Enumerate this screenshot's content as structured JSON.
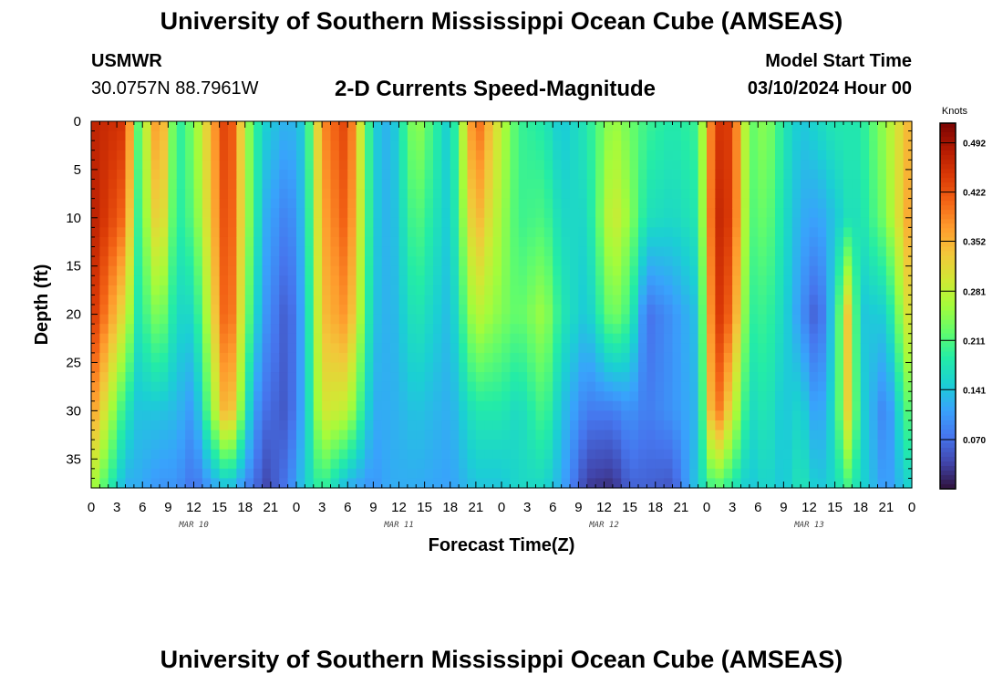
{
  "header": {
    "title": "University of Southern Mississippi Ocean Cube (AMSEAS)",
    "station": "USMWR",
    "coords": "30.0757N  88.7961W",
    "subtitle": "2-D Currents Speed-Magnitude",
    "model_start_label": "Model Start Time",
    "model_start_value": "03/10/2024 Hour 00"
  },
  "footer": {
    "title": "University of Southern Mississippi Ocean Cube (AMSEAS)"
  },
  "colors": {
    "axis": "#000000",
    "colormap": [
      "#30123b",
      "#4145ab",
      "#4675ed",
      "#39a2fc",
      "#1bcfd4",
      "#24eca6",
      "#61fc6c",
      "#a4fc3b",
      "#d1e834",
      "#f3c63a",
      "#fe9b2d",
      "#f36315",
      "#d93806",
      "#b11901",
      "#7a0403"
    ]
  },
  "chart_data": {
    "type": "heatmap",
    "title": "2-D Currents Speed-Magnitude",
    "xlabel": "Forecast Time(Z)",
    "ylabel": "Depth (ft)",
    "x_range_hours": [
      0,
      96
    ],
    "x_tick_step_hours": 3,
    "x_tick_labels": [
      "0",
      "3",
      "6",
      "9",
      "12",
      "15",
      "18",
      "21",
      "0",
      "3",
      "6",
      "9",
      "12",
      "15",
      "18",
      "21",
      "0",
      "3",
      "6",
      "9",
      "12",
      "15",
      "18",
      "21",
      "0",
      "3",
      "6",
      "9",
      "12",
      "15",
      "18",
      "21",
      "0"
    ],
    "day_labels": [
      {
        "label": "MAR 10",
        "hour": 12
      },
      {
        "label": "MAR 11",
        "hour": 36
      },
      {
        "label": "MAR 12",
        "hour": 60
      },
      {
        "label": "MAR 13",
        "hour": 84
      }
    ],
    "ylim": [
      0,
      38
    ],
    "y_ticks": [
      0,
      5,
      10,
      15,
      20,
      25,
      30,
      35
    ],
    "y_tick_labels": [
      "0",
      "5",
      "10",
      "15",
      "20",
      "25",
      "30",
      "35"
    ],
    "colorbar": {
      "label": "Knots",
      "range": [
        0.0,
        0.52
      ],
      "ticks": [
        0.492,
        0.422,
        0.352,
        0.281,
        0.211,
        0.141,
        0.07
      ],
      "tick_labels": [
        "0.492",
        "0.422",
        "0.352",
        "0.281",
        "0.211",
        "0.141",
        "0.070"
      ]
    },
    "profile_hours": [
      0,
      4,
      5.5,
      8,
      10,
      12,
      16,
      19,
      20.5,
      23,
      25,
      27,
      30,
      33,
      35,
      38,
      42,
      45,
      48,
      50,
      53,
      55,
      58,
      61,
      63,
      65,
      68,
      71,
      73,
      75,
      77,
      79,
      81,
      83,
      85,
      87,
      88.5,
      90,
      93,
      96
    ],
    "profile_depths_ft": [
      0,
      10,
      20,
      30,
      38
    ],
    "speed_profiles_knots": [
      [
        0.47,
        0.48,
        0.46,
        0.38,
        0.27
      ],
      [
        0.45,
        0.4,
        0.3,
        0.18,
        0.12
      ],
      [
        0.22,
        0.2,
        0.18,
        0.14,
        0.12
      ],
      [
        0.4,
        0.35,
        0.25,
        0.14,
        0.1
      ],
      [
        0.18,
        0.18,
        0.16,
        0.13,
        0.1
      ],
      [
        0.24,
        0.22,
        0.16,
        0.1,
        0.07
      ],
      [
        0.46,
        0.45,
        0.44,
        0.38,
        0.14
      ],
      [
        0.2,
        0.2,
        0.17,
        0.11,
        0.07
      ],
      [
        0.15,
        0.12,
        0.1,
        0.07,
        0.04
      ],
      [
        0.12,
        0.08,
        0.05,
        0.05,
        0.08
      ],
      [
        0.15,
        0.14,
        0.13,
        0.13,
        0.15
      ],
      [
        0.38,
        0.36,
        0.34,
        0.3,
        0.2
      ],
      [
        0.44,
        0.42,
        0.38,
        0.28,
        0.12
      ],
      [
        0.15,
        0.15,
        0.14,
        0.12,
        0.1
      ],
      [
        0.12,
        0.12,
        0.12,
        0.12,
        0.12
      ],
      [
        0.26,
        0.22,
        0.18,
        0.14,
        0.12
      ],
      [
        0.14,
        0.14,
        0.13,
        0.12,
        0.11
      ],
      [
        0.42,
        0.36,
        0.28,
        0.18,
        0.14
      ],
      [
        0.28,
        0.26,
        0.24,
        0.18,
        0.14
      ],
      [
        0.2,
        0.2,
        0.22,
        0.16,
        0.16
      ],
      [
        0.18,
        0.21,
        0.26,
        0.21,
        0.16
      ],
      [
        0.14,
        0.16,
        0.18,
        0.14,
        0.12
      ],
      [
        0.18,
        0.16,
        0.14,
        0.08,
        0.03
      ],
      [
        0.26,
        0.3,
        0.24,
        0.08,
        0.02
      ],
      [
        0.23,
        0.25,
        0.2,
        0.1,
        0.06
      ],
      [
        0.2,
        0.17,
        0.07,
        0.08,
        0.06
      ],
      [
        0.18,
        0.16,
        0.1,
        0.1,
        0.05
      ],
      [
        0.2,
        0.18,
        0.14,
        0.13,
        0.15
      ],
      [
        0.45,
        0.47,
        0.46,
        0.42,
        0.22
      ],
      [
        0.44,
        0.44,
        0.4,
        0.3,
        0.18
      ],
      [
        0.22,
        0.21,
        0.19,
        0.16,
        0.14
      ],
      [
        0.25,
        0.23,
        0.2,
        0.18,
        0.16
      ],
      [
        0.18,
        0.17,
        0.16,
        0.14,
        0.14
      ],
      [
        0.14,
        0.12,
        0.1,
        0.16,
        0.18
      ],
      [
        0.16,
        0.11,
        0.05,
        0.1,
        0.14
      ],
      [
        0.18,
        0.14,
        0.16,
        0.17,
        0.16
      ],
      [
        0.18,
        0.17,
        0.33,
        0.32,
        0.2
      ],
      [
        0.18,
        0.17,
        0.14,
        0.16,
        0.16
      ],
      [
        0.26,
        0.24,
        0.15,
        0.08,
        0.1
      ],
      [
        0.36,
        0.38,
        0.33,
        0.24,
        0.16
      ]
    ]
  }
}
